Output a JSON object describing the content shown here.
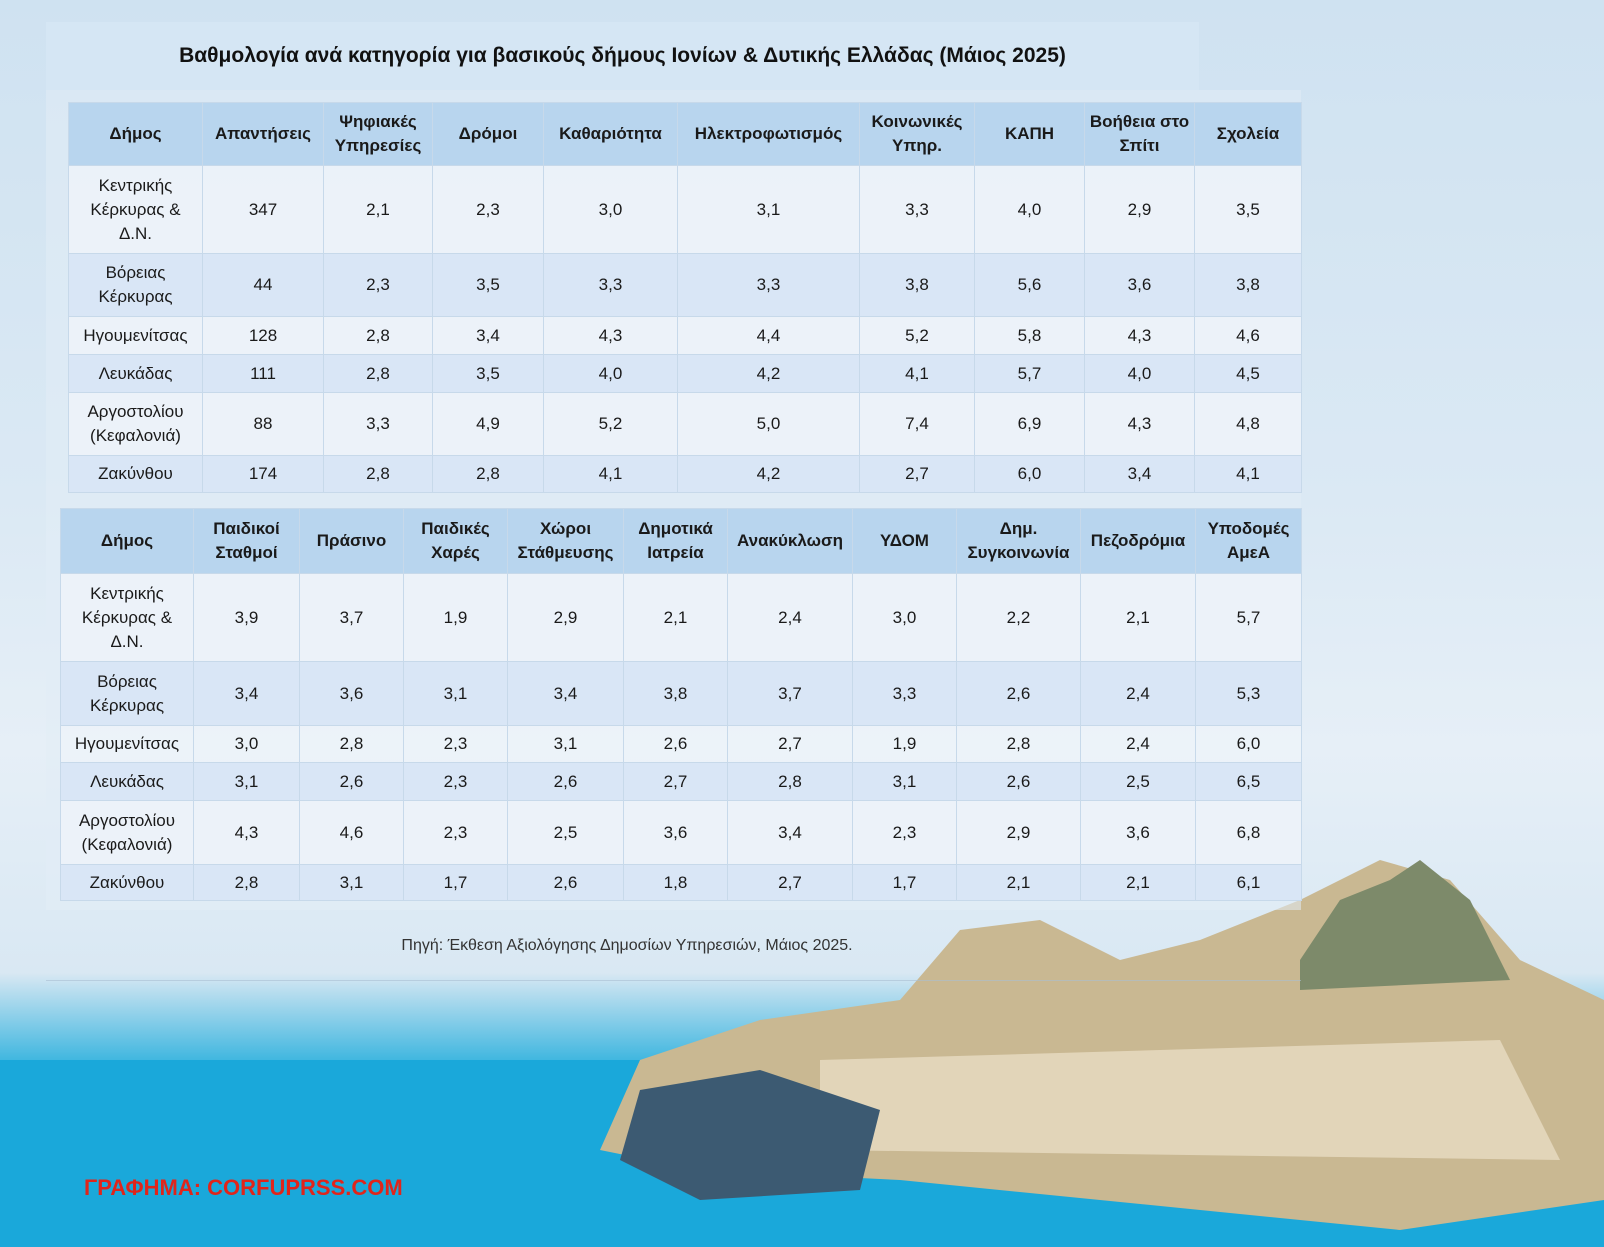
{
  "title": "Βαθμολογία ανά κατηγορία για βασικούς δήμους Ιονίων & Δυτικής Ελλάδας (Μάιος 2025)",
  "table1": {
    "headers": [
      "Δήμος",
      "Απαντήσεις",
      "Ψηφιακές Υπηρεσίες",
      "Δρόμοι",
      "Καθαριότητα",
      "Ηλεκτροφωτισμός",
      "Κοινωνικές Υπηρ.",
      "ΚΑΠΗ",
      "Βοήθεια στο Σπίτι",
      "Σχολεία"
    ],
    "rows": [
      [
        "Κεντρικής Κέρκυρας & Δ.Ν.",
        "347",
        "2,1",
        "2,3",
        "3,0",
        "3,1",
        "3,3",
        "4,0",
        "2,9",
        "3,5"
      ],
      [
        "Βόρειας Κέρκυρας",
        "44",
        "2,3",
        "3,5",
        "3,3",
        "3,3",
        "3,8",
        "5,6",
        "3,6",
        "3,8"
      ],
      [
        "Ηγουμενίτσας",
        "128",
        "2,8",
        "3,4",
        "4,3",
        "4,4",
        "5,2",
        "5,8",
        "4,3",
        "4,6"
      ],
      [
        "Λευκάδας",
        "111",
        "2,8",
        "3,5",
        "4,0",
        "4,2",
        "4,1",
        "5,7",
        "4,0",
        "4,5"
      ],
      [
        "Αργοστολίου (Κεφαλονιά)",
        "88",
        "3,3",
        "4,9",
        "5,2",
        "5,0",
        "7,4",
        "6,9",
        "4,3",
        "4,8"
      ],
      [
        "Ζακύνθου",
        "174",
        "2,8",
        "2,8",
        "4,1",
        "4,2",
        "2,7",
        "6,0",
        "3,4",
        "4,1"
      ]
    ]
  },
  "table2": {
    "headers": [
      "Δήμος",
      "Παιδικοί Σταθμοί",
      "Πράσινο",
      "Παιδικές Χαρές",
      "Χώροι Στάθμευσης",
      "Δημοτικά Ιατρεία",
      "Ανακύκλωση",
      "ΥΔΟΜ",
      "Δημ. Συγκοινωνία",
      "Πεζοδρόμια",
      "Υποδομές ΑμεΑ"
    ],
    "rows": [
      [
        "Κεντρικής Κέρκυρας & Δ.Ν.",
        "3,9",
        "3,7",
        "1,9",
        "2,9",
        "2,1",
        "2,4",
        "3,0",
        "2,2",
        "2,1",
        "5,7"
      ],
      [
        "Βόρειας Κέρκυρας",
        "3,4",
        "3,6",
        "3,1",
        "3,4",
        "3,8",
        "3,7",
        "3,3",
        "2,6",
        "2,4",
        "5,3"
      ],
      [
        "Ηγουμενίτσας",
        "3,0",
        "2,8",
        "2,3",
        "3,1",
        "2,6",
        "2,7",
        "1,9",
        "2,8",
        "2,4",
        "6,0"
      ],
      [
        "Λευκάδας",
        "3,1",
        "2,6",
        "2,3",
        "2,6",
        "2,7",
        "2,8",
        "3,1",
        "2,6",
        "2,5",
        "6,5"
      ],
      [
        "Αργοστολίου (Κεφαλονιά)",
        "4,3",
        "4,6",
        "2,3",
        "2,5",
        "3,6",
        "3,4",
        "2,3",
        "2,9",
        "3,6",
        "6,8"
      ],
      [
        "Ζακύνθου",
        "2,8",
        "3,1",
        "1,7",
        "2,6",
        "1,8",
        "2,7",
        "1,7",
        "2,1",
        "2,1",
        "6,1"
      ]
    ]
  },
  "source": "Πηγή: Έκθεση Αξιολόγησης Δημοσίων Υπηρεσιών, Μάιος 2025.",
  "credit": "ΓΡΑΦΗΜΑ: CORFUPRSS.COM",
  "colors": {
    "header_bg": "#b8d5ee",
    "sea": "#15a3d6",
    "credit": "#e0251b"
  }
}
